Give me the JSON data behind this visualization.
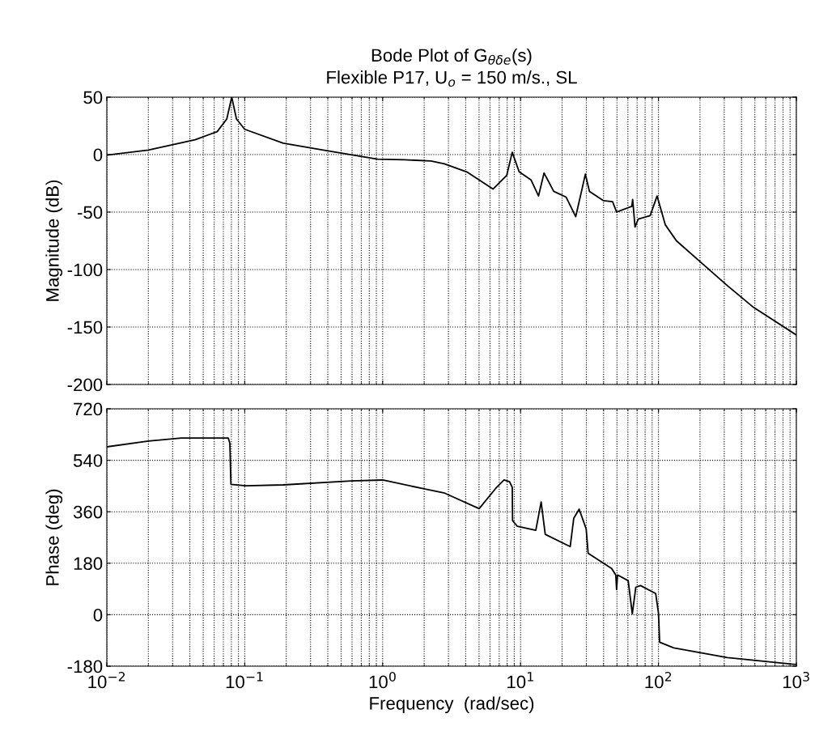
{
  "chart_data": [
    {
      "type": "line",
      "title": "Bode Plot of G$_{θδe}$(s)\nFlexible P17, U$_{o}$ = 150 m/s., SL",
      "ylabel": "Magnitude (dB)",
      "log": "x",
      "grid": true,
      "tick_labels": "y",
      "line_style": "solid",
      "marker": "none",
      "x": [
        0.01,
        0.02,
        0.0437,
        0.0631,
        0.0741,
        0.0805,
        0.0871,
        0.1,
        0.19,
        0.37,
        0.92,
        1.44,
        2.24,
        2.8,
        4.07,
        6.31,
        7.94,
        8.7,
        9.77,
        11.9,
        13.5,
        14.8,
        17.4,
        21.4,
        25.1,
        27.9,
        29.5,
        31.6,
        39.8,
        46.5,
        49.7,
        64.1,
        65,
        67.6,
        71.4,
        87.1,
        97.7,
        112,
        135,
        200,
        316,
        490,
        1000
      ],
      "series": [
        {
          "color": "#000000",
          "values": [
            -0.5,
            4,
            13,
            20,
            31,
            50,
            31,
            22,
            10,
            4,
            -4,
            -4.5,
            -5.5,
            -8,
            -15,
            -30,
            -18,
            2,
            -15,
            -22,
            -36,
            -16,
            -32,
            -37,
            -54,
            -30,
            -17,
            -32,
            -40,
            -41,
            -50,
            -45,
            -39,
            -63,
            -56,
            -53,
            -36,
            -61,
            -75,
            -93,
            -114,
            -133,
            -157
          ]
        }
      ],
      "xlim": [
        0.01,
        1000
      ],
      "xticks": [
        {
          "value": 0.01,
          "label": null
        },
        {
          "value": 0.1,
          "label": null
        },
        {
          "value": 1,
          "label": null
        },
        {
          "value": 10,
          "label": null
        },
        {
          "value": 100,
          "label": null
        },
        {
          "value": 1000,
          "label": null
        }
      ],
      "ylim": [
        -200,
        50
      ],
      "yticks": [
        -200,
        -150,
        -100,
        -50,
        0,
        50
      ]
    },
    {
      "type": "line",
      "xlabel": "Frequency  (rad/sec)",
      "ylabel": "Phase (deg)",
      "log": "x",
      "grid": true,
      "line_style": "solid",
      "marker": "none",
      "x": [
        0.01,
        0.02,
        0.0347,
        0.0759,
        0.078,
        0.0794,
        0.102,
        0.19,
        0.59,
        1.0,
        2.0,
        2.82,
        5.01,
        6.61,
        7.59,
        8.32,
        8.71,
        8.75,
        9.48,
        12.9,
        14.1,
        15.1,
        22.9,
        24.3,
        26.6,
        29.9,
        30.9,
        45.7,
        49,
        49.7,
        50.5,
        60.3,
        64.6,
        68.5,
        74.1,
        95.5,
        100,
        102,
        129,
        316,
        955,
        1000
      ],
      "series": [
        {
          "color": "#000000",
          "values": [
            587,
            607,
            618,
            618,
            600,
            456,
            451,
            454,
            468,
            471,
            440,
            425,
            371,
            442,
            471,
            465,
            445,
            329,
            309,
            295,
            394,
            281,
            238,
            337,
            369,
            300,
            215,
            162,
            139,
            88,
            139,
            119,
            3,
            96,
            102,
            74,
            6,
            -96,
            -116,
            -150,
            -173,
            -174
          ]
        }
      ],
      "xlim": [
        0.01,
        1000
      ],
      "xticks": [
        {
          "value": 0.01,
          "label": "10$^{−2}$"
        },
        {
          "value": 0.1,
          "label": "10$^{−1}$"
        },
        {
          "value": 1,
          "label": "10$^{0}$"
        },
        {
          "value": 10,
          "label": "10$^{1}$"
        },
        {
          "value": 100,
          "label": "10$^{2}$"
        },
        {
          "value": 1000,
          "label": "10$^{3}$"
        }
      ],
      "ylim": [
        -180,
        720
      ],
      "yticks": [
        -180,
        0,
        180,
        360,
        540,
        720
      ]
    }
  ]
}
